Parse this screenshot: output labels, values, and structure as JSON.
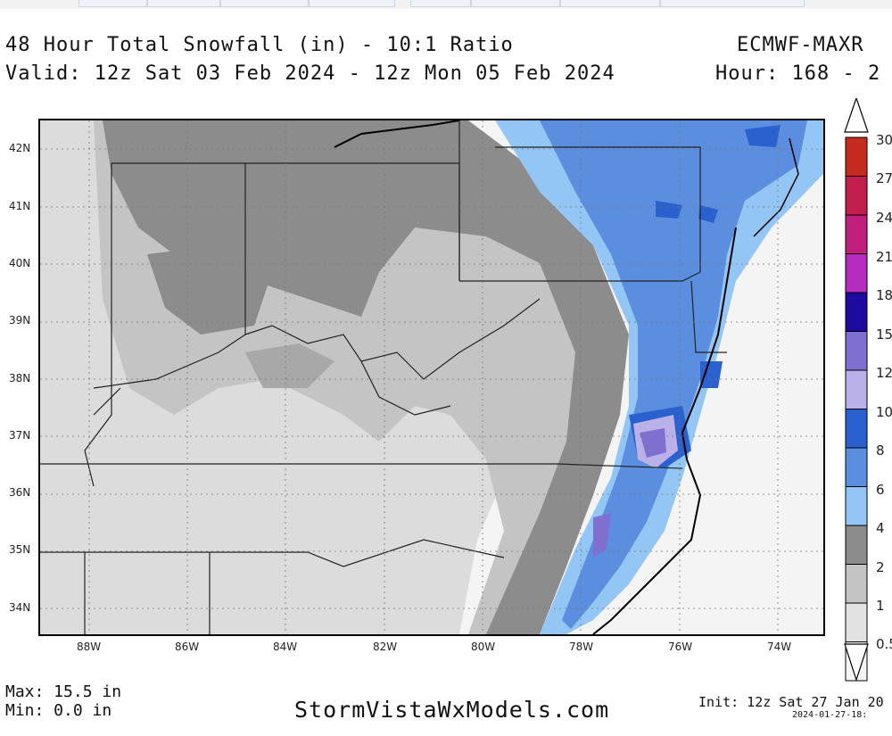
{
  "header": {
    "title": "48 Hour Total Snowfall (in) - 10:1 Ratio",
    "model": "ECMWF-MAXR",
    "valid": "Valid: 12z Sat 03 Feb 2024 - 12z Mon 05 Feb 2024",
    "hour": "Hour: 168 - 2"
  },
  "map": {
    "lat_labels": [
      "42N",
      "41N",
      "40N",
      "39N",
      "38N",
      "37N",
      "36N",
      "35N",
      "34N"
    ],
    "lon_labels": [
      "88W",
      "86W",
      "84W",
      "82W",
      "80W",
      "78W",
      "76W",
      "74W"
    ]
  },
  "colorbar": {
    "labels": [
      "30",
      "27",
      "24",
      "21",
      "18",
      "15",
      "12",
      "10",
      "8",
      "6",
      "4",
      "2",
      "1",
      "0.5"
    ],
    "colors": [
      "#c42b1e",
      "#c21f4e",
      "#c0207c",
      "#b52cbf",
      "#1f0aa0",
      "#7e6fd0",
      "#b9b1e8",
      "#2b60cf",
      "#5c8ee0",
      "#94c6f5",
      "#8c8c8c",
      "#c4c4c4",
      "#e2e2e2",
      "#f5f5f5"
    ]
  },
  "footer": {
    "max": "Max: 15.5 in",
    "min": "Min: 0.0 in",
    "site": "StormVistaWxModels.com",
    "init": "Init: 12z Sat 27 Jan 20",
    "timestamp": "2024-01-27-18:"
  }
}
